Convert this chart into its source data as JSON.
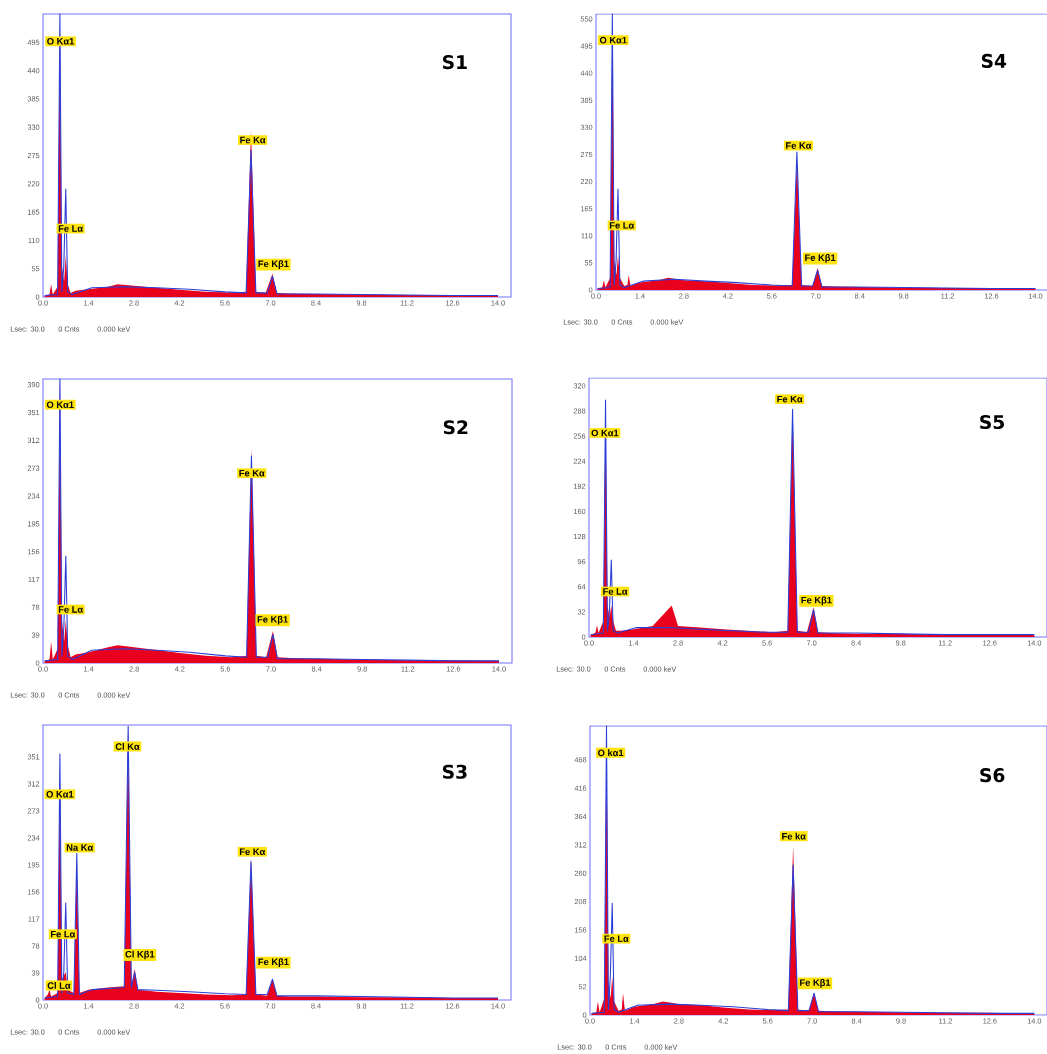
{
  "chart_data": [
    {
      "type": "area",
      "title": "S1",
      "xlim": [
        0,
        14.4
      ],
      "ylim": [
        0,
        550
      ],
      "xticks": [
        {
          "value": 0,
          "label": "0.0"
        },
        {
          "value": 1.4,
          "label": "1.4"
        },
        {
          "value": 2.8,
          "label": "2.8"
        },
        {
          "value": 4.2,
          "label": "4.2"
        },
        {
          "value": 5.6,
          "label": "5.6"
        },
        {
          "value": 7,
          "label": "7.0"
        },
        {
          "value": 8.4,
          "label": "8.4"
        },
        {
          "value": 9.8,
          "label": "9.8"
        },
        {
          "value": 11.2,
          "label": "11.2"
        },
        {
          "value": 12.6,
          "label": "12.6"
        },
        {
          "value": 14,
          "label": "14.0"
        }
      ],
      "yticks": [
        0,
        55,
        110,
        165,
        220,
        275,
        330,
        385,
        440,
        495
      ],
      "series": [
        {
          "color": "#e8001c",
          "x": [
            0.05,
            0.2,
            0.25,
            0.3,
            0.45,
            0.52,
            0.58,
            0.65,
            0.7,
            0.76,
            0.85,
            1.0,
            1.4,
            2.0,
            2.3,
            2.8,
            3.5,
            4.2,
            5.0,
            5.8,
            6.25,
            6.4,
            6.55,
            6.85,
            7.06,
            7.2,
            7.6,
            8.4,
            9.8,
            11.2,
            12.6,
            14.0
          ],
          "values": [
            3,
            5,
            25,
            5,
            20,
            540,
            60,
            30,
            80,
            25,
            8,
            12,
            15,
            20,
            25,
            22,
            18,
            14,
            10,
            9,
            10,
            325,
            10,
            8,
            45,
            8,
            7,
            6,
            5,
            4,
            4,
            3
          ]
        },
        {
          "type": "line",
          "color": "#2a3fd8",
          "x": [
            0.05,
            0.45,
            0.52,
            0.58,
            0.64,
            0.7,
            0.76,
            0.9,
            1.5,
            2.5,
            3.5,
            4.5,
            5.6,
            6.25,
            6.4,
            6.55,
            6.9,
            7.06,
            7.2,
            8.4,
            9.8,
            11.2,
            12.6,
            14.0
          ],
          "values": [
            3,
            5,
            550,
            10,
            60,
            210,
            10,
            5,
            18,
            20,
            18,
            15,
            10,
            8,
            285,
            8,
            8,
            40,
            6,
            6,
            5,
            4,
            3,
            3
          ]
        }
      ],
      "annotations": [
        {
          "text": "O Kα1",
          "x": 0.54,
          "y": 497
        },
        {
          "text": "Fe Lα",
          "x": 0.85,
          "y": 133
        },
        {
          "text": "Fe Kα",
          "x": 6.45,
          "y": 305
        },
        {
          "text": "Fe Kβ1",
          "x": 7.09,
          "y": 63
        },
        "Lsec: 30.0",
        "0 Cnts",
        "0.000 keV"
      ]
    },
    {
      "type": "area",
      "title": "S4",
      "xlim": [
        0,
        14.4
      ],
      "ylim": [
        0,
        560
      ],
      "xticks": [
        {
          "value": 0,
          "label": "0.0"
        },
        {
          "value": 1.4,
          "label": "1.4"
        },
        {
          "value": 2.8,
          "label": "2.8"
        },
        {
          "value": 4.2,
          "label": "4.2"
        },
        {
          "value": 5.6,
          "label": "5.6"
        },
        {
          "value": 7,
          "label": "7.0"
        },
        {
          "value": 8.4,
          "label": "8.4"
        },
        {
          "value": 9.8,
          "label": "9.8"
        },
        {
          "value": 11.2,
          "label": "11.2"
        },
        {
          "value": 12.6,
          "label": "12.6"
        },
        {
          "value": 14,
          "label": "14.0"
        }
      ],
      "yticks": [
        0,
        55,
        110,
        165,
        220,
        275,
        330,
        385,
        440,
        495,
        550
      ],
      "series": [
        {
          "color": "#e8001c",
          "x": [
            0.05,
            0.2,
            0.25,
            0.3,
            0.45,
            0.52,
            0.58,
            0.65,
            0.7,
            0.76,
            0.9,
            1.0,
            1.04,
            1.1,
            1.4,
            2.0,
            2.3,
            2.8,
            3.5,
            4.2,
            5.0,
            5.8,
            6.25,
            6.4,
            6.55,
            6.9,
            7.06,
            7.2,
            7.6,
            8.4,
            9.8,
            11.2,
            12.6,
            14.0
          ],
          "values": [
            3,
            5,
            20,
            5,
            25,
            550,
            60,
            30,
            70,
            25,
            8,
            10,
            30,
            8,
            15,
            20,
            25,
            20,
            18,
            14,
            10,
            9,
            10,
            270,
            10,
            8,
            45,
            8,
            7,
            6,
            5,
            4,
            4,
            3
          ]
        },
        {
          "type": "line",
          "color": "#2a3fd8",
          "x": [
            0.05,
            0.45,
            0.52,
            0.58,
            0.64,
            0.7,
            0.76,
            0.9,
            1.5,
            2.5,
            3.5,
            4.5,
            5.6,
            6.25,
            6.4,
            6.55,
            6.9,
            7.06,
            7.2,
            8.4,
            9.8,
            11.2,
            12.6,
            14.0
          ],
          "values": [
            3,
            5,
            560,
            10,
            60,
            205,
            10,
            5,
            18,
            22,
            18,
            15,
            10,
            8,
            280,
            8,
            8,
            40,
            6,
            6,
            5,
            4,
            3,
            3
          ]
        }
      ],
      "annotations": [
        {
          "text": "O Kα1",
          "x": 0.55,
          "y": 507
        },
        {
          "text": "Fe Lα",
          "x": 0.82,
          "y": 131
        },
        {
          "text": "Fe Kα",
          "x": 6.45,
          "y": 293
        },
        {
          "text": "Fe Kβ1",
          "x": 7.14,
          "y": 64
        },
        "Lsec: 30.0",
        "0 Cnts",
        "0.000 keV"
      ]
    },
    {
      "type": "area",
      "title": "S2",
      "xlim": [
        0,
        14.4
      ],
      "ylim": [
        0,
        398
      ],
      "xticks": [
        {
          "value": 0,
          "label": "0.0"
        },
        {
          "value": 1.4,
          "label": "1.4"
        },
        {
          "value": 2.8,
          "label": "2.8"
        },
        {
          "value": 4.2,
          "label": "4.2"
        },
        {
          "value": 5.6,
          "label": "5.6"
        },
        {
          "value": 7,
          "label": "7.0"
        },
        {
          "value": 8.4,
          "label": "8.4"
        },
        {
          "value": 9.8,
          "label": "9.8"
        },
        {
          "value": 11.2,
          "label": "11.2"
        },
        {
          "value": 12.6,
          "label": "12.6"
        },
        {
          "value": 14,
          "label": "14.0"
        }
      ],
      "yticks": [
        0,
        39,
        78,
        117,
        156,
        195,
        234,
        273,
        312,
        351,
        390
      ],
      "series": [
        {
          "color": "#e8001c",
          "x": [
            0.05,
            0.2,
            0.25,
            0.3,
            0.45,
            0.52,
            0.58,
            0.65,
            0.7,
            0.76,
            0.85,
            1.0,
            1.4,
            2.0,
            2.3,
            2.8,
            3.5,
            4.2,
            5.0,
            5.8,
            6.25,
            6.4,
            6.55,
            6.85,
            7.06,
            7.2,
            7.6,
            8.4,
            9.8,
            11.2,
            12.6,
            14.0
          ],
          "values": [
            3,
            5,
            30,
            5,
            20,
            398,
            60,
            30,
            60,
            25,
            8,
            12,
            15,
            22,
            25,
            22,
            18,
            14,
            10,
            8,
            10,
            300,
            10,
            8,
            45,
            8,
            7,
            6,
            5,
            4,
            4,
            3
          ]
        },
        {
          "type": "line",
          "color": "#2a3fd8",
          "x": [
            0.05,
            0.45,
            0.52,
            0.58,
            0.64,
            0.7,
            0.76,
            0.9,
            1.5,
            2.5,
            3.5,
            4.5,
            5.6,
            6.25,
            6.4,
            6.55,
            6.9,
            7.06,
            7.2,
            8.4,
            9.8,
            11.2,
            12.6,
            14.0
          ],
          "values": [
            3,
            5,
            398,
            10,
            50,
            150,
            10,
            5,
            18,
            20,
            18,
            15,
            10,
            8,
            290,
            8,
            8,
            40,
            6,
            6,
            5,
            4,
            3,
            3
          ]
        }
      ],
      "annotations": [
        {
          "text": "O Kα1",
          "x": 0.53,
          "y": 362
        },
        {
          "text": "Fe Lα",
          "x": 0.85,
          "y": 75
        },
        {
          "text": "Fe Kα",
          "x": 6.41,
          "y": 266
        },
        {
          "text": "Fe Kβ1",
          "x": 7.05,
          "y": 60
        },
        "Lsec: 30.0",
        "0 Cnts",
        "0.000 keV"
      ]
    },
    {
      "type": "area",
      "title": "S5",
      "xlim": [
        0,
        14.4
      ],
      "ylim": [
        0,
        330
      ],
      "xticks": [
        {
          "value": 0,
          "label": "0.0"
        },
        {
          "value": 1.4,
          "label": "1.4"
        },
        {
          "value": 2.8,
          "label": "2.8"
        },
        {
          "value": 4.2,
          "label": "4.2"
        },
        {
          "value": 5.6,
          "label": "5.6"
        },
        {
          "value": 7,
          "label": "7.0"
        },
        {
          "value": 8.4,
          "label": "8.4"
        },
        {
          "value": 9.8,
          "label": "9.8"
        },
        {
          "value": 11.2,
          "label": "11.2"
        },
        {
          "value": 12.6,
          "label": "12.6"
        },
        {
          "value": 14,
          "label": "14.0"
        }
      ],
      "yticks": [
        0,
        32,
        64,
        96,
        128,
        160,
        192,
        224,
        256,
        288,
        320
      ],
      "series": [
        {
          "color": "#e8001c",
          "x": [
            0.05,
            0.2,
            0.25,
            0.3,
            0.45,
            0.52,
            0.58,
            0.65,
            0.7,
            0.76,
            0.85,
            1.0,
            1.4,
            2.0,
            2.6,
            2.8,
            3.5,
            4.2,
            5.0,
            5.8,
            6.25,
            6.4,
            6.55,
            6.85,
            7.06,
            7.2,
            7.6,
            8.4,
            9.8,
            11.2,
            12.6,
            14.0
          ],
          "values": [
            3,
            5,
            15,
            5,
            20,
            290,
            40,
            25,
            40,
            20,
            8,
            8,
            10,
            14,
            40,
            14,
            12,
            10,
            8,
            6,
            8,
            292,
            8,
            6,
            38,
            6,
            5,
            4,
            4,
            3,
            3,
            3
          ]
        },
        {
          "type": "line",
          "color": "#2a3fd8",
          "x": [
            0.05,
            0.45,
            0.52,
            0.58,
            0.64,
            0.7,
            0.76,
            0.9,
            1.5,
            2.5,
            3.5,
            4.5,
            5.6,
            6.25,
            6.4,
            6.55,
            6.9,
            7.06,
            7.2,
            8.4,
            9.8,
            11.2,
            12.6,
            14.0
          ],
          "values": [
            3,
            5,
            302,
            8,
            30,
            98,
            8,
            5,
            12,
            12,
            10,
            8,
            6,
            6,
            290,
            6,
            6,
            35,
            5,
            5,
            4,
            3,
            3,
            3
          ]
        }
      ],
      "annotations": [
        {
          "text": "O Kα1",
          "x": 0.5,
          "y": 260
        },
        {
          "text": "Fe Lα",
          "x": 0.82,
          "y": 58
        },
        {
          "text": "Fe Kα",
          "x": 6.31,
          "y": 303
        },
        {
          "text": "Fe Kβ1",
          "x": 7.15,
          "y": 46
        },
        "Lsec: 30.0",
        "0 Cnts",
        "0.000 keV"
      ]
    },
    {
      "type": "area",
      "title": "S3",
      "xlim": [
        0,
        14.4
      ],
      "ylim": [
        0,
        397
      ],
      "xticks": [
        {
          "value": 0,
          "label": "0.0"
        },
        {
          "value": 1.4,
          "label": "1.4"
        },
        {
          "value": 2.8,
          "label": "2.8"
        },
        {
          "value": 4.2,
          "label": "4.2"
        },
        {
          "value": 5.6,
          "label": "5.6"
        },
        {
          "value": 7,
          "label": "7.0"
        },
        {
          "value": 8.4,
          "label": "8.4"
        },
        {
          "value": 9.8,
          "label": "9.8"
        },
        {
          "value": 11.2,
          "label": "11.2"
        },
        {
          "value": 12.6,
          "label": "12.6"
        },
        {
          "value": 14,
          "label": "14.0"
        }
      ],
      "yticks": [
        0,
        39,
        78,
        117,
        156,
        195,
        234,
        273,
        312,
        351
      ],
      "series": [
        {
          "color": "#e8001c",
          "x": [
            0.05,
            0.15,
            0.2,
            0.25,
            0.45,
            0.52,
            0.58,
            0.7,
            0.76,
            0.95,
            1.04,
            1.12,
            1.4,
            2.0,
            2.5,
            2.62,
            2.72,
            2.82,
            2.92,
            3.5,
            4.2,
            5.0,
            5.8,
            6.25,
            6.4,
            6.55,
            6.9,
            7.06,
            7.2,
            7.6,
            8.4,
            9.8,
            11.2,
            12.6,
            14.0
          ],
          "values": [
            3,
            8,
            15,
            5,
            10,
            340,
            30,
            40,
            15,
            10,
            205,
            10,
            15,
            18,
            20,
            397,
            20,
            45,
            15,
            12,
            10,
            8,
            7,
            8,
            205,
            8,
            6,
            30,
            6,
            5,
            5,
            4,
            4,
            3,
            3
          ]
        },
        {
          "type": "line",
          "color": "#2a3fd8",
          "x": [
            0.05,
            0.45,
            0.52,
            0.58,
            0.64,
            0.7,
            0.76,
            0.95,
            1.04,
            1.12,
            1.5,
            2.5,
            2.62,
            2.72,
            2.82,
            2.92,
            3.5,
            4.5,
            5.6,
            6.25,
            6.4,
            6.55,
            6.9,
            7.06,
            7.2,
            8.4,
            9.8,
            11.2,
            12.6,
            14.0
          ],
          "values": [
            3,
            5,
            355,
            10,
            40,
            140,
            10,
            8,
            212,
            8,
            15,
            18,
            395,
            18,
            40,
            15,
            14,
            12,
            9,
            8,
            200,
            8,
            8,
            30,
            6,
            6,
            5,
            4,
            3,
            3
          ]
        }
      ],
      "annotations": [
        {
          "text": "Cl Kα",
          "x": 2.6,
          "y": 366
        },
        {
          "text": "O Kα1",
          "x": 0.52,
          "y": 297
        },
        {
          "text": "Na Kα",
          "x": 1.13,
          "y": 220
        },
        {
          "text": "Fe Lα",
          "x": 0.61,
          "y": 95
        },
        {
          "text": "Cl Kβ1",
          "x": 2.98,
          "y": 65
        },
        {
          "text": "Fe Kα",
          "x": 6.44,
          "y": 214
        },
        {
          "text": "Fe Kβ1",
          "x": 7.09,
          "y": 54
        },
        {
          "text": "Cl Lα",
          "x": 0.49,
          "y": 21
        },
        "Lsec: 30.0",
        "0 Cnts",
        "0.000 keV"
      ]
    },
    {
      "type": "area",
      "title": "S6",
      "xlim": [
        0,
        14.4
      ],
      "ylim": [
        0,
        530
      ],
      "xticks": [
        {
          "value": 0,
          "label": "0.0"
        },
        {
          "value": 1.4,
          "label": "1.4"
        },
        {
          "value": 2.8,
          "label": "2.8"
        },
        {
          "value": 4.2,
          "label": "4.2"
        },
        {
          "value": 5.6,
          "label": "5.6"
        },
        {
          "value": 7,
          "label": "7.0"
        },
        {
          "value": 8.4,
          "label": "8.4"
        },
        {
          "value": 9.8,
          "label": "9.8"
        },
        {
          "value": 11.2,
          "label": "11.2"
        },
        {
          "value": 12.6,
          "label": "12.6"
        },
        {
          "value": 14,
          "label": "14.0"
        }
      ],
      "yticks": [
        0,
        52,
        104,
        156,
        208,
        260,
        312,
        364,
        416,
        468
      ],
      "series": [
        {
          "color": "#e8001c",
          "x": [
            0.05,
            0.2,
            0.25,
            0.3,
            0.45,
            0.52,
            0.58,
            0.65,
            0.7,
            0.76,
            0.9,
            1.0,
            1.04,
            1.1,
            1.4,
            2.0,
            2.3,
            2.8,
            3.5,
            4.2,
            5.0,
            5.8,
            6.25,
            6.4,
            6.55,
            6.9,
            7.06,
            7.2,
            7.6,
            8.4,
            9.8,
            11.2,
            12.6,
            14.0
          ],
          "values": [
            3,
            5,
            25,
            5,
            30,
            520,
            60,
            30,
            70,
            25,
            8,
            10,
            40,
            8,
            15,
            20,
            25,
            20,
            18,
            14,
            10,
            9,
            10,
            310,
            10,
            8,
            40,
            8,
            7,
            6,
            5,
            4,
            4,
            3
          ]
        },
        {
          "type": "line",
          "color": "#2a3fd8",
          "x": [
            0.05,
            0.45,
            0.52,
            0.58,
            0.64,
            0.7,
            0.76,
            0.9,
            1.5,
            2.5,
            3.5,
            4.5,
            5.6,
            6.25,
            6.4,
            6.55,
            6.9,
            7.06,
            7.2,
            8.4,
            9.8,
            11.2,
            12.6,
            14.0
          ],
          "values": [
            3,
            5,
            530,
            10,
            70,
            205,
            10,
            5,
            18,
            20,
            18,
            15,
            10,
            8,
            275,
            8,
            8,
            40,
            6,
            6,
            5,
            4,
            3,
            3
          ]
        }
      ],
      "annotations": [
        {
          "text": "O kα1",
          "x": 0.65,
          "y": 481
        },
        {
          "text": "Fe Lα",
          "x": 0.83,
          "y": 140
        },
        {
          "text": "Fe kα",
          "x": 6.42,
          "y": 328
        },
        {
          "text": "Fe Kβ1",
          "x": 7.09,
          "y": 58
        },
        "Lsec: 30.0",
        "0 Cnts",
        "0.000 keV"
      ]
    }
  ]
}
